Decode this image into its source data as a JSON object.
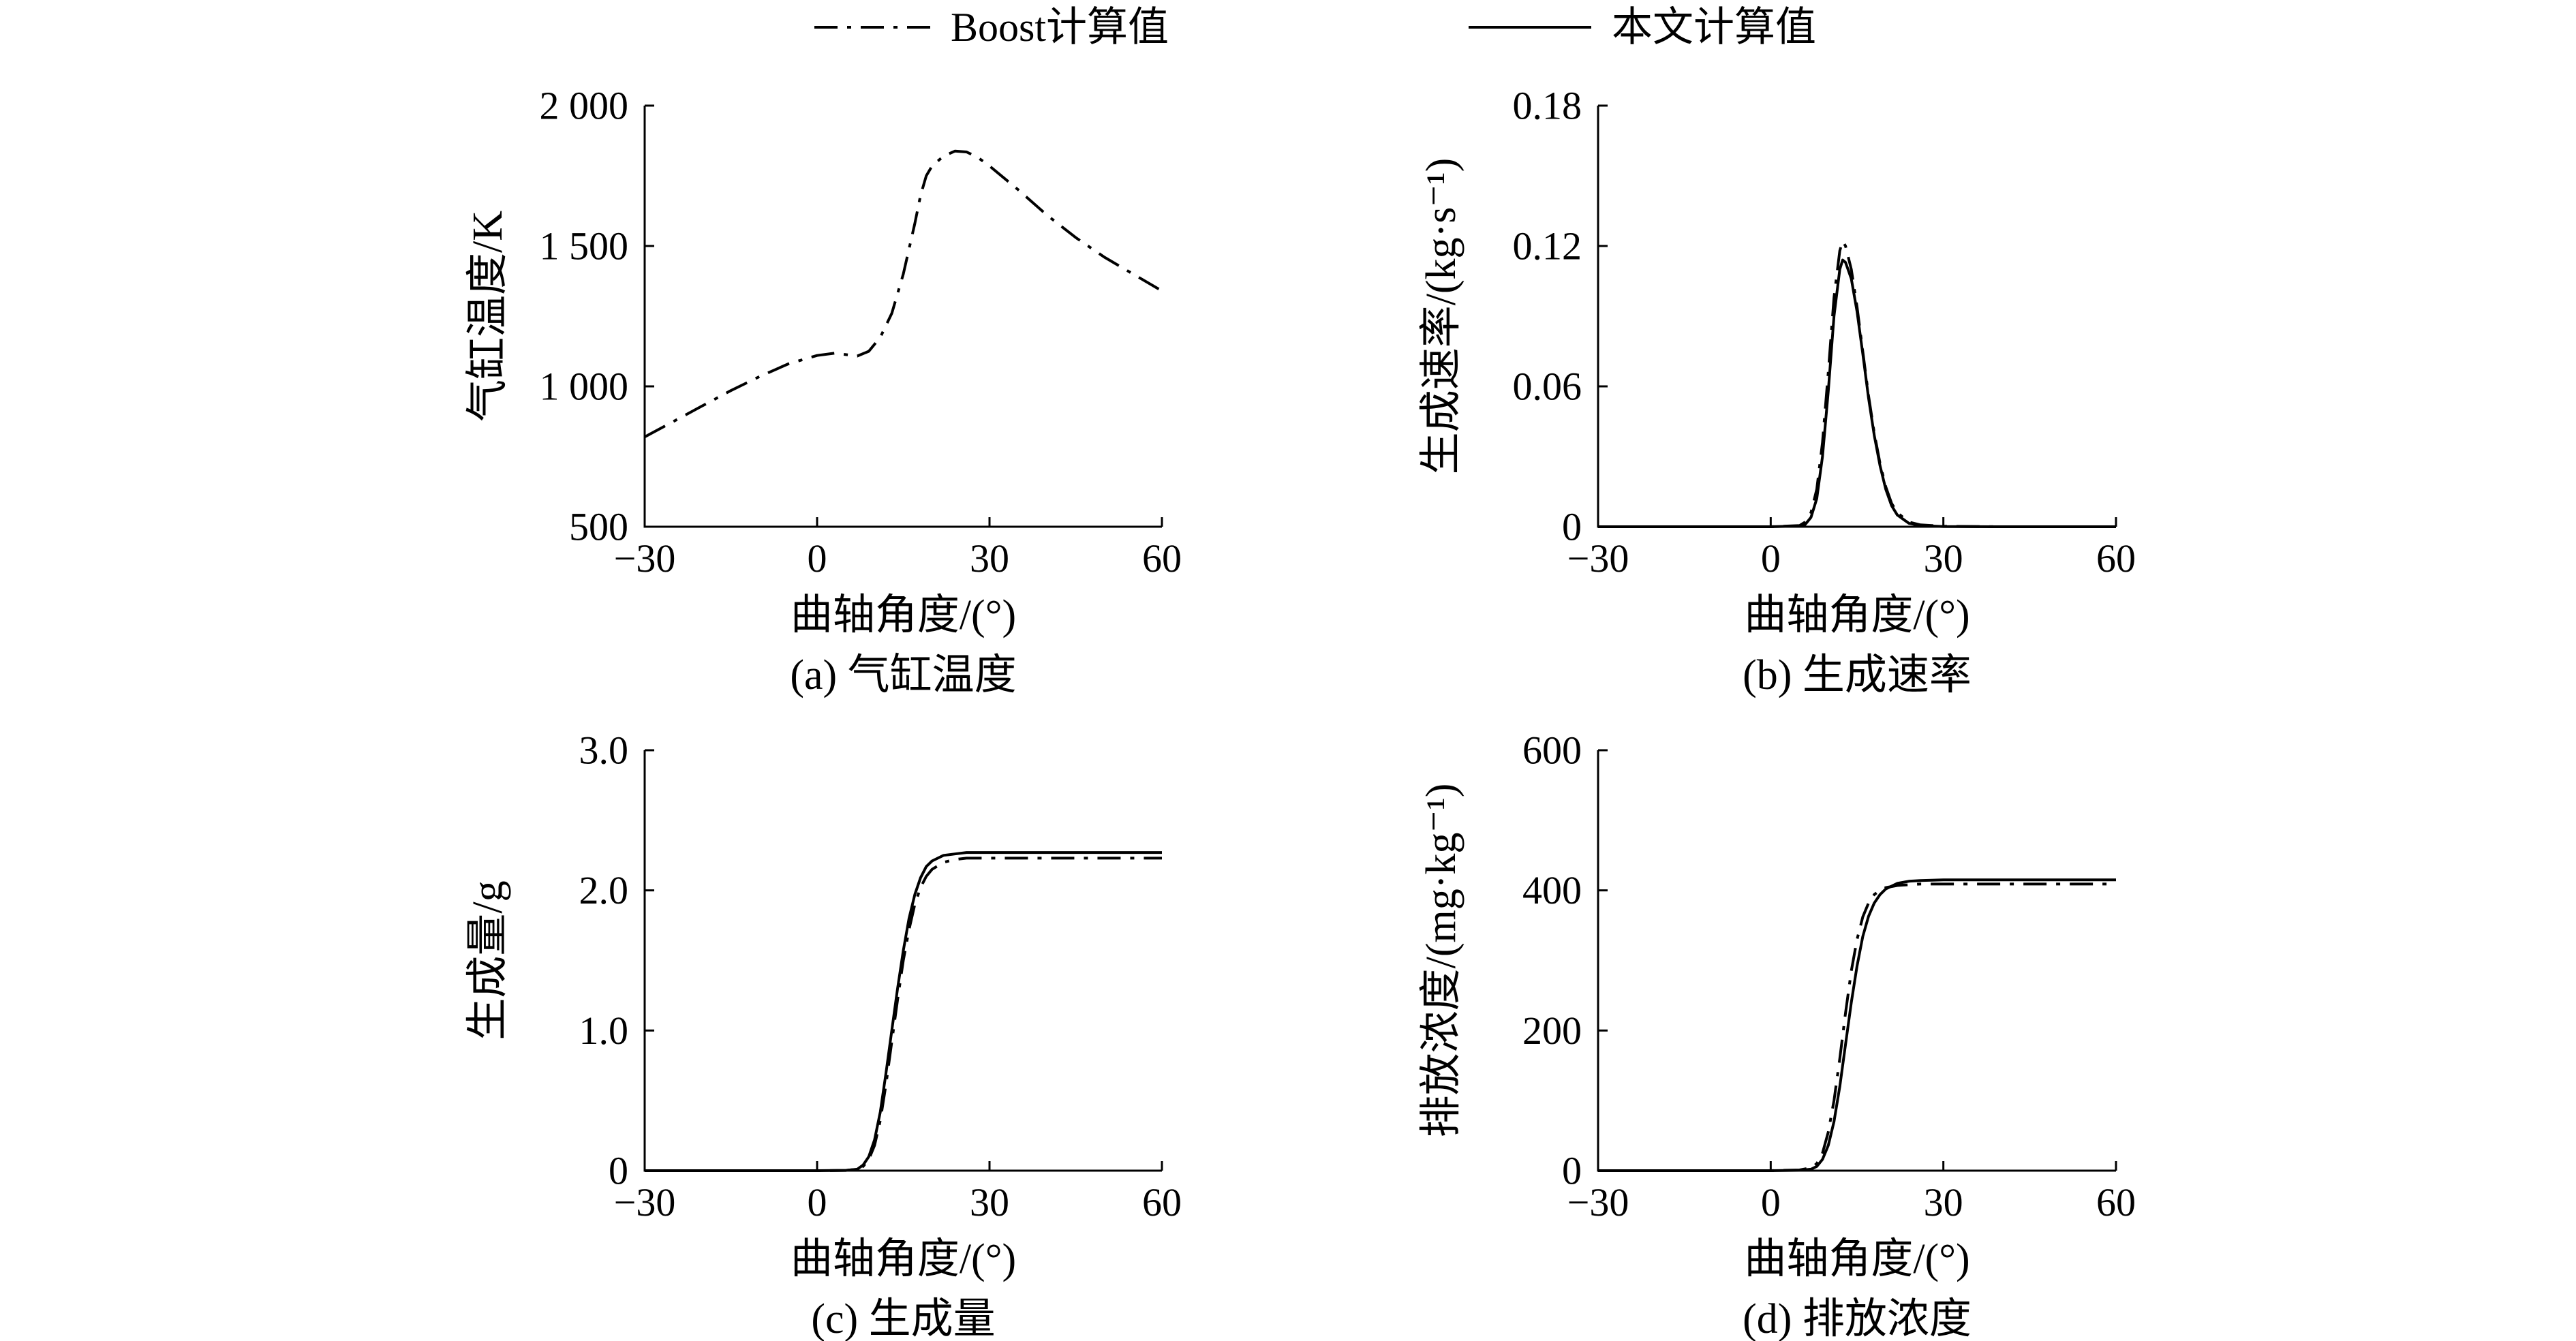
{
  "legend": {
    "items": [
      {
        "label": "Boost计算值",
        "style": "dashdot"
      },
      {
        "label": "本文计算值",
        "style": "solid"
      }
    ]
  },
  "chart_data": [
    {
      "type": "line",
      "caption": "(a) 气缸温度",
      "xlabel": "曲轴角度/(°)",
      "ylabel": "气缸温度/K",
      "xlim": [
        -30,
        60
      ],
      "ylim": [
        500,
        2000
      ],
      "xticks": [
        -30,
        0,
        30,
        60
      ],
      "xtick_labels": [
        "−30",
        "0",
        "30",
        "60"
      ],
      "yticks": [
        500,
        1000,
        1500,
        2000
      ],
      "ytick_labels": [
        "500",
        "1 000",
        "1 500",
        "2 000"
      ],
      "grid": false,
      "series": [
        {
          "name": "Boost计算值",
          "style": "dashdot",
          "x": [
            -30,
            -25,
            -20,
            -15,
            -10,
            -5,
            0,
            3,
            5,
            7,
            9,
            11,
            13,
            15,
            17,
            18,
            19,
            20,
            22,
            24,
            26,
            28,
            30,
            35,
            40,
            45,
            50,
            55,
            60
          ],
          "y": [
            820,
            875,
            930,
            985,
            1035,
            1080,
            1110,
            1118,
            1113,
            1108,
            1125,
            1175,
            1260,
            1400,
            1580,
            1680,
            1750,
            1785,
            1820,
            1838,
            1835,
            1815,
            1785,
            1700,
            1610,
            1530,
            1460,
            1400,
            1340
          ]
        }
      ]
    },
    {
      "type": "line",
      "caption": "(b) 生成速率",
      "xlabel": "曲轴角度/(°)",
      "ylabel": "生成速率/(kg·s⁻¹)",
      "xlim": [
        -30,
        60
      ],
      "ylim": [
        0,
        0.18
      ],
      "xticks": [
        -30,
        0,
        30,
        60
      ],
      "xtick_labels": [
        "−30",
        "0",
        "30",
        "60"
      ],
      "yticks": [
        0,
        0.06,
        0.12,
        0.18
      ],
      "ytick_labels": [
        "0",
        "0.06",
        "0.12",
        "0.18"
      ],
      "grid": false,
      "series": [
        {
          "name": "Boost计算值",
          "style": "dashdot",
          "x": [
            -30,
            0,
            5,
            6,
            7,
            8,
            9,
            10,
            11,
            12,
            12.5,
            13,
            14,
            15,
            16,
            17,
            18,
            19,
            20,
            21,
            22,
            24,
            26,
            30,
            40,
            60
          ],
          "y": [
            0,
            0,
            0.0005,
            0.002,
            0.006,
            0.016,
            0.036,
            0.066,
            0.098,
            0.118,
            0.122,
            0.12,
            0.11,
            0.094,
            0.075,
            0.056,
            0.04,
            0.027,
            0.017,
            0.01,
            0.006,
            0.002,
            0.0008,
            0.0002,
            0,
            0
          ]
        },
        {
          "name": "本文计算值",
          "style": "solid",
          "x": [
            -30,
            0,
            5,
            6,
            7,
            8,
            9,
            10,
            11,
            12,
            12.5,
            13,
            14,
            15,
            16,
            17,
            18,
            19,
            20,
            21,
            22,
            24,
            26,
            30,
            40,
            60
          ],
          "y": [
            0,
            0,
            0.0003,
            0.001,
            0.004,
            0.012,
            0.03,
            0.058,
            0.09,
            0.11,
            0.114,
            0.113,
            0.106,
            0.092,
            0.074,
            0.055,
            0.039,
            0.026,
            0.016,
            0.009,
            0.005,
            0.0015,
            0.0005,
            0.0001,
            0,
            0
          ]
        }
      ]
    },
    {
      "type": "line",
      "caption": "(c) 生成量",
      "xlabel": "曲轴角度/(°)",
      "ylabel": "生成量/g",
      "xlim": [
        -30,
        60
      ],
      "ylim": [
        0,
        3.0
      ],
      "xticks": [
        -30,
        0,
        30,
        60
      ],
      "xtick_labels": [
        "−30",
        "0",
        "30",
        "60"
      ],
      "yticks": [
        0,
        1.0,
        2.0,
        3.0
      ],
      "ytick_labels": [
        "0",
        "1.0",
        "2.0",
        "3.0"
      ],
      "grid": false,
      "series": [
        {
          "name": "Boost计算值",
          "style": "dashdot",
          "x": [
            -30,
            0,
            5,
            7,
            8,
            9,
            10,
            11,
            12,
            13,
            14,
            15,
            16,
            17,
            18,
            19,
            20,
            22,
            24,
            26,
            30,
            40,
            60
          ],
          "y": [
            0,
            0,
            0.002,
            0.01,
            0.03,
            0.08,
            0.18,
            0.36,
            0.62,
            0.92,
            1.22,
            1.5,
            1.72,
            1.9,
            2.02,
            2.1,
            2.15,
            2.2,
            2.22,
            2.23,
            2.23,
            2.23,
            2.23
          ]
        },
        {
          "name": "本文计算值",
          "style": "solid",
          "x": [
            -30,
            0,
            5,
            7,
            8,
            9,
            10,
            11,
            12,
            13,
            14,
            15,
            16,
            17,
            18,
            19,
            20,
            22,
            24,
            26,
            30,
            40,
            60
          ],
          "y": [
            0,
            0,
            0.002,
            0.01,
            0.04,
            0.1,
            0.22,
            0.42,
            0.7,
            1.0,
            1.3,
            1.57,
            1.8,
            1.97,
            2.09,
            2.17,
            2.21,
            2.25,
            2.26,
            2.27,
            2.27,
            2.27,
            2.27
          ]
        }
      ]
    },
    {
      "type": "line",
      "caption": "(d) 排放浓度",
      "xlabel": "曲轴角度/(°)",
      "ylabel": "排放浓度/(mg·kg⁻¹)",
      "xlim": [
        -30,
        60
      ],
      "ylim": [
        0,
        600
      ],
      "xticks": [
        -30,
        0,
        30,
        60
      ],
      "xtick_labels": [
        "−30",
        "0",
        "30",
        "60"
      ],
      "yticks": [
        0,
        200,
        400,
        600
      ],
      "ytick_labels": [
        "0",
        "200",
        "400",
        "600"
      ],
      "grid": false,
      "series": [
        {
          "name": "Boost计算值",
          "style": "dashdot",
          "x": [
            -30,
            0,
            5,
            7,
            8,
            9,
            10,
            11,
            12,
            13,
            14,
            15,
            16,
            17,
            18,
            19,
            20,
            22,
            24,
            26,
            30,
            40,
            60
          ],
          "y": [
            0,
            0,
            1,
            4,
            10,
            25,
            55,
            100,
            160,
            225,
            285,
            330,
            362,
            382,
            394,
            400,
            404,
            407,
            408,
            409,
            409,
            409,
            409
          ]
        },
        {
          "name": "本文计算值",
          "style": "solid",
          "x": [
            -30,
            0,
            5,
            7,
            8,
            9,
            10,
            11,
            12,
            13,
            14,
            15,
            16,
            17,
            18,
            19,
            20,
            22,
            24,
            26,
            30,
            40,
            60
          ],
          "y": [
            0,
            0,
            0.5,
            2,
            6,
            16,
            36,
            70,
            120,
            180,
            240,
            292,
            334,
            363,
            382,
            394,
            402,
            410,
            413,
            414,
            415,
            415,
            415
          ]
        }
      ]
    }
  ]
}
